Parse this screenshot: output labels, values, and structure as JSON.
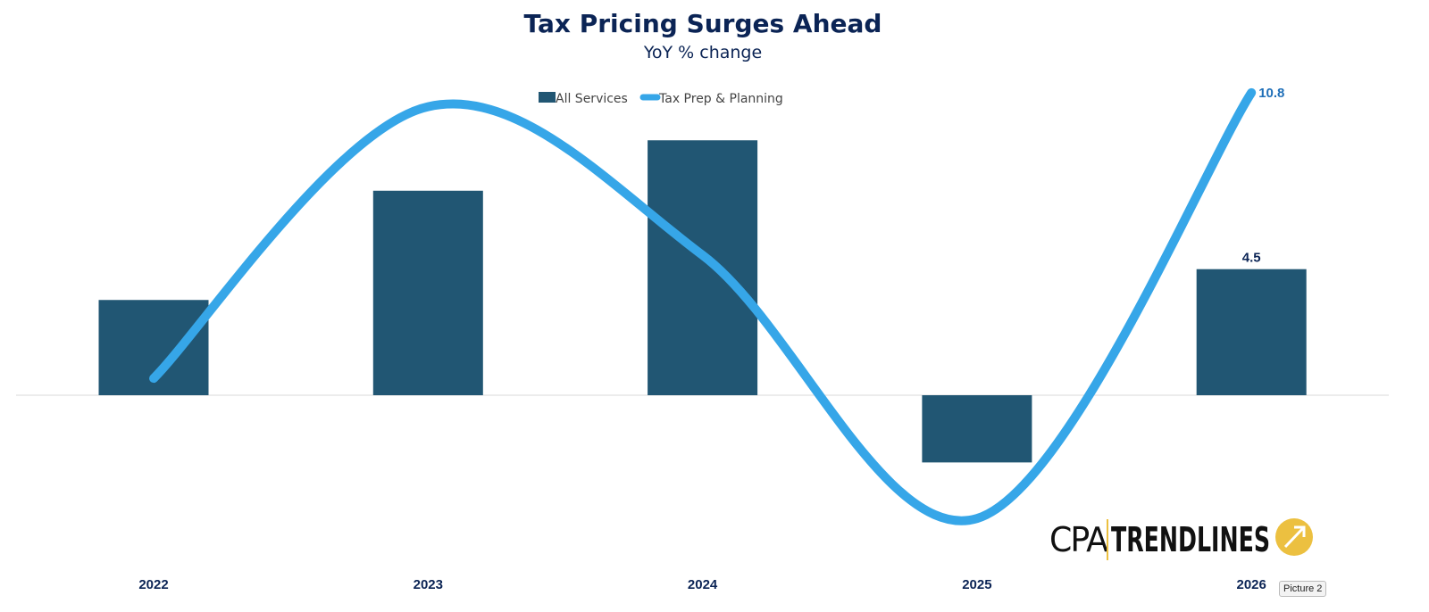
{
  "chart_data": {
    "type": "bar",
    "title": "Tax Pricing Surges Ahead",
    "subtitle": "YoY % change",
    "categories": [
      "2022",
      "2023",
      "2024",
      "2025",
      "2026"
    ],
    "series": [
      {
        "name": "All Services",
        "type": "bar",
        "color": "#215673",
        "values": [
          3.4,
          7.3,
          9.1,
          -2.4,
          4.5
        ]
      },
      {
        "name": "Tax Prep & Planning",
        "type": "line",
        "smooth": true,
        "color": "#36a6e8",
        "values": [
          0.6,
          10.3,
          5.0,
          -4.4,
          10.8
        ]
      }
    ],
    "data_labels": {
      "bar_2026": "4.5",
      "line_2026": "10.8"
    },
    "ylim": [
      -5.2,
      12
    ],
    "y_axis_visible": false,
    "grid": false,
    "legend": "top-center"
  },
  "logo": {
    "text_left": "CPA",
    "text_right": "TRENDLINES",
    "accent_color": "#ecc040"
  },
  "tooltip": "Picture 2"
}
